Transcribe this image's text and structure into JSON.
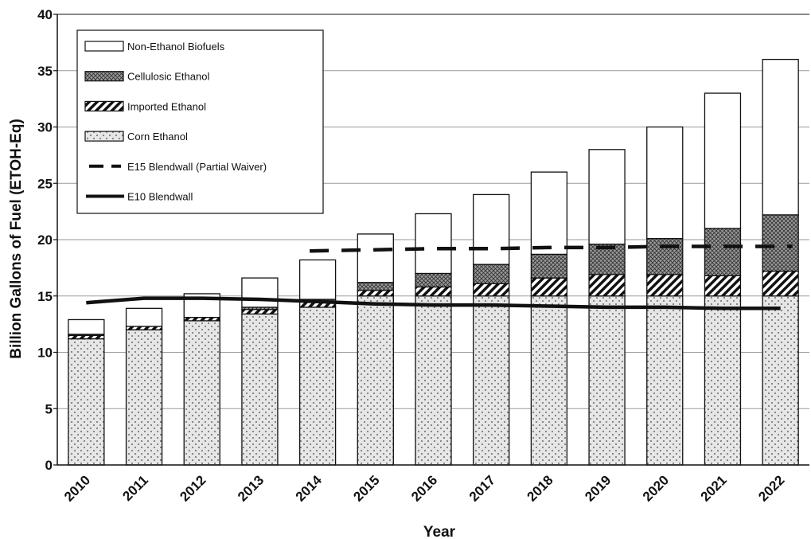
{
  "chart_data": {
    "type": "bar",
    "stacked": true,
    "title": "",
    "xlabel": "Year",
    "ylabel": "Billion Gallons of Fuel (ETOH-Eq)",
    "ylim": [
      0,
      40
    ],
    "yticks": [
      0,
      5,
      10,
      15,
      20,
      25,
      30,
      35,
      40
    ],
    "grid": true,
    "legend_position": "top-left",
    "categories": [
      "2010",
      "2011",
      "2012",
      "2013",
      "2014",
      "2015",
      "2016",
      "2017",
      "2018",
      "2019",
      "2020",
      "2021",
      "2022"
    ],
    "series": [
      {
        "name": "Corn Ethanol",
        "pattern": "dots",
        "values": [
          11.2,
          12.0,
          12.8,
          13.4,
          14.0,
          15.0,
          15.0,
          15.0,
          15.0,
          15.0,
          15.0,
          15.0,
          15.0
        ]
      },
      {
        "name": "Imported Ethanol",
        "pattern": "diagonal-stripes",
        "values": [
          0.3,
          0.3,
          0.3,
          0.4,
          0.5,
          0.5,
          0.8,
          1.1,
          1.6,
          1.9,
          1.9,
          1.8,
          2.2
        ]
      },
      {
        "name": "Cellulosic Ethanol",
        "pattern": "crosshatch",
        "values": [
          0.1,
          0.0,
          0.0,
          0.2,
          0.2,
          0.7,
          1.2,
          1.7,
          2.1,
          2.7,
          3.2,
          4.2,
          5.0
        ]
      },
      {
        "name": "Non-Ethanol Biofuels",
        "pattern": "blank",
        "values": [
          1.3,
          1.6,
          2.1,
          2.6,
          3.5,
          4.3,
          5.3,
          6.2,
          7.3,
          8.4,
          9.9,
          12.0,
          13.8
        ]
      }
    ],
    "lines": [
      {
        "name": "E15 Blendwall (Partial Waiver)",
        "style": "dashed",
        "x": [
          "2014",
          "2015",
          "2016",
          "2017",
          "2018",
          "2019",
          "2020",
          "2021",
          "2022"
        ],
        "y": [
          19.0,
          19.1,
          19.2,
          19.2,
          19.3,
          19.3,
          19.4,
          19.4,
          19.4
        ]
      },
      {
        "name": "E10 Blendwall",
        "style": "solid",
        "x": [
          "2010",
          "2011",
          "2012",
          "2013",
          "2014",
          "2015",
          "2016",
          "2017",
          "2018",
          "2019",
          "2020",
          "2021",
          "2022"
        ],
        "y": [
          14.4,
          14.8,
          14.8,
          14.7,
          14.5,
          14.3,
          14.2,
          14.2,
          14.1,
          14.0,
          14.0,
          13.9,
          13.9
        ]
      }
    ],
    "legend_order": [
      "Non-Ethanol Biofuels",
      "Cellulosic Ethanol",
      "Imported Ethanol",
      "Corn Ethanol",
      "E15 Blendwall (Partial Waiver)",
      "E10 Blendwall"
    ]
  }
}
